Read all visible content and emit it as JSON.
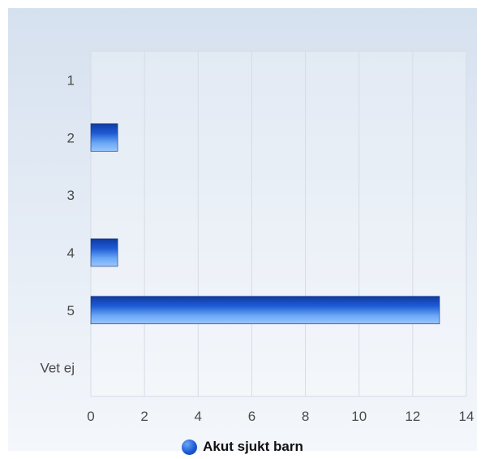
{
  "chart_data": {
    "type": "bar",
    "orientation": "horizontal",
    "categories": [
      "1",
      "2",
      "3",
      "4",
      "5",
      "Vet ej"
    ],
    "series": [
      {
        "name": "Akut sjukt barn",
        "values": [
          0,
          1,
          0,
          1,
          13,
          0
        ]
      }
    ],
    "xlim": [
      0,
      14
    ],
    "x_ticks": [
      "0",
      "2",
      "4",
      "6",
      "8",
      "10",
      "12",
      "14"
    ],
    "grid": true,
    "legend_position": "bottom",
    "colors": {
      "bar": "#1e5bd6",
      "bar_light": "#6aa8f5",
      "background_top": "#d6e1ef",
      "background_bottom": "#f4f7fb",
      "grid": "#d4dce6"
    }
  },
  "legend": {
    "label": "Akut sjukt barn"
  }
}
